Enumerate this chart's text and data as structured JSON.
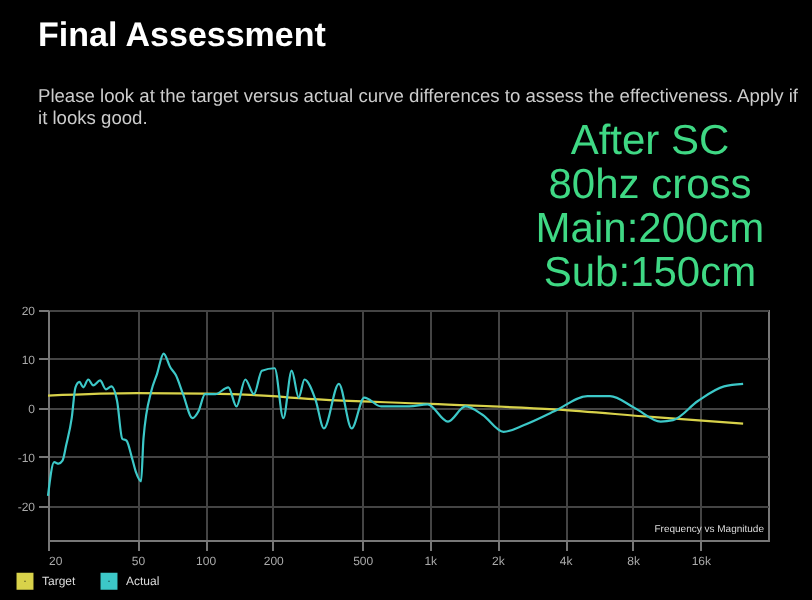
{
  "chart_data": {
    "type": "line",
    "title": "Final Assessment",
    "subtitle": "Please look at the target versus actual curve differences to assess the effectiveness. Apply if it looks good.",
    "annotations": [
      "After SC",
      "80hz cross",
      "Main:200cm",
      "Sub:150cm",
      "Frequency vs Magnitude"
    ],
    "series": [
      {
        "name": "Target",
        "color": "#d8d24a",
        "x": [
          20,
          50,
          100,
          200,
          240,
          1000,
          3580,
          10000,
          24800
        ],
        "values": [
          2.5,
          3.0,
          2.9,
          2.4,
          2.1,
          0.8,
          -0.3,
          -1.9,
          -3.2
        ]
      },
      {
        "name": "Actual",
        "color": "#3cc8c8",
        "x": [
          20,
          21.3,
          22.3,
          23.2,
          24.1,
          25.5,
          26.5,
          27.6,
          28.7,
          30.2,
          31.8,
          34.1,
          36.2,
          38.3,
          40.6,
          42.8,
          44.7,
          47.4,
          49.3,
          51.9,
          53.2,
          57.7,
          61.1,
          65.4,
          70,
          74.1,
          79.8,
          87.9,
          93.5,
          100,
          111,
          127,
          138,
          151,
          165,
          179,
          204,
          223,
          243,
          261,
          277,
          310,
          338,
          394,
          449,
          511,
          607,
          810,
          978,
          1205,
          1440,
          1716,
          2130,
          2630,
          3580,
          5030,
          6340,
          8150,
          10650,
          12100,
          15600,
          20400,
          24800
        ],
        "values": [
          -18,
          -11.1,
          -11.4,
          -10.8,
          -7.6,
          -2.1,
          4.2,
          5.3,
          4.2,
          5.8,
          4.6,
          5.6,
          3.8,
          4.4,
          1.4,
          -6.3,
          -6.7,
          -10.4,
          -13.2,
          -15,
          -6.3,
          3.5,
          6.9,
          11.1,
          8.3,
          6.7,
          2.8,
          -2.1,
          -0.7,
          2.8,
          2.8,
          4.2,
          0.3,
          5.8,
          2.8,
          7.6,
          8.1,
          -2.1,
          7.6,
          2.1,
          5.8,
          1.7,
          -4.2,
          4.9,
          -4.2,
          2.1,
          0.3,
          0.3,
          0.7,
          -2.8,
          0.3,
          -1.4,
          -4.9,
          -3.5,
          -0.7,
          2.4,
          2.4,
          0,
          -2.8,
          -2.5,
          1.4,
          4.4,
          4.9
        ]
      }
    ],
    "log": "x",
    "xlim": [
      20,
      32000
    ],
    "xticks": [
      20,
      50,
      100,
      200,
      500,
      {
        "value": 1000,
        "label": "1k"
      },
      {
        "value": 2000,
        "label": "2k"
      },
      {
        "value": 4000,
        "label": "4k"
      },
      {
        "value": 8000,
        "label": "8k"
      },
      {
        "value": 16000,
        "label": "16k"
      }
    ],
    "ylim": [
      -27,
      20
    ],
    "yticks": [
      -20,
      -10,
      0,
      10,
      20
    ],
    "grid": true,
    "legend": "bottom left"
  }
}
